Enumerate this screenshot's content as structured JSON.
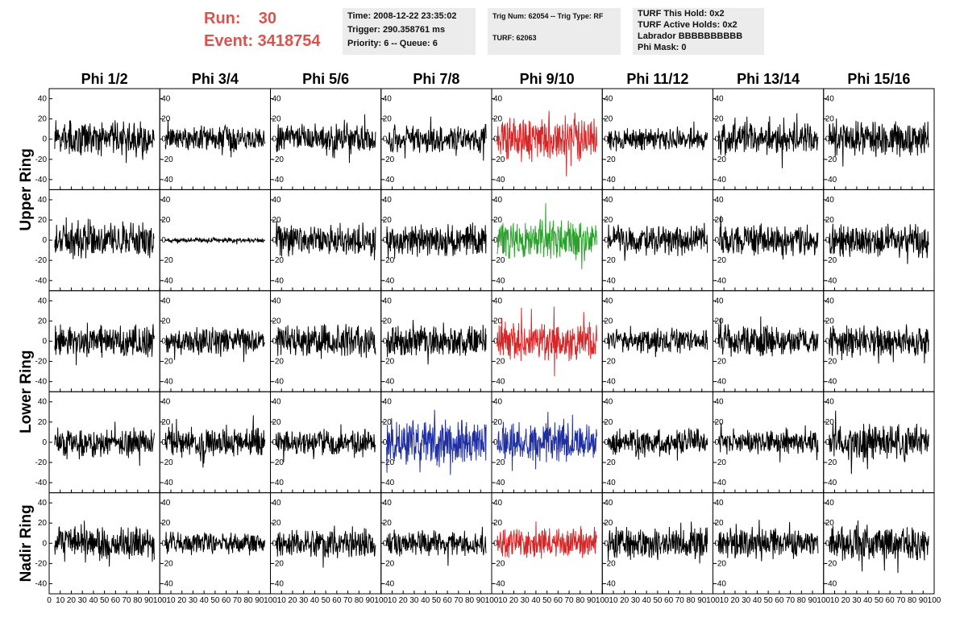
{
  "header": {
    "run_label": "Run:    30",
    "event_label": "Event: 3418754"
  },
  "info_time": {
    "time": "Time: 2008-12-22 23:35:02",
    "trigger": "Trigger: 290.358761 ms",
    "priority": "Priority: 6 -- Queue: 6"
  },
  "info_trig": {
    "trig": "Trig Num: 62054 -- Trig Type: RF",
    "turf": "TURF: 62063"
  },
  "info_turf": {
    "hold": "TURF This Hold: 0x2",
    "active": "TURF Active Holds: 0x2",
    "labrador": "Labrador BBBBBBBBBB",
    "phi_mask": "Phi Mask: 0"
  },
  "chart_data": {
    "type": "line",
    "columns": [
      "Phi 1/2",
      "Phi 3/4",
      "Phi 5/6",
      "Phi 7/8",
      "Phi 9/10",
      "Phi 11/12",
      "Phi 13/14",
      "Phi 15/16"
    ],
    "rows": [
      "Upper Ring",
      "Lower Ring",
      "Nadir Ring"
    ],
    "xlim": [
      0,
      100
    ],
    "ylim": [
      -50,
      50
    ],
    "x_ticks": [
      0,
      10,
      20,
      30,
      40,
      50,
      60,
      70,
      80,
      90,
      100
    ],
    "y_ticks": [
      -40,
      -20,
      0,
      20,
      40
    ],
    "x_tick_labels": [
      "0",
      "10",
      "20",
      "30",
      "40",
      "50",
      "60",
      "70",
      "80",
      "90",
      "100"
    ],
    "colors": {
      "default": "#000000",
      "red": "#d62728",
      "green": "#2ca02c",
      "blue": "#1f2fa0"
    },
    "panels": [
      {
        "row": 0,
        "col": 0,
        "color": "default",
        "amp": 14
      },
      {
        "row": 0,
        "col": 1,
        "color": "default",
        "amp": 10
      },
      {
        "row": 0,
        "col": 2,
        "color": "default",
        "amp": 12
      },
      {
        "row": 0,
        "col": 3,
        "color": "default",
        "amp": 11
      },
      {
        "row": 0,
        "col": 4,
        "color": "red",
        "amp": 18
      },
      {
        "row": 0,
        "col": 5,
        "color": "default",
        "amp": 9
      },
      {
        "row": 0,
        "col": 6,
        "color": "default",
        "amp": 13
      },
      {
        "row": 0,
        "col": 7,
        "color": "default",
        "amp": 14
      },
      {
        "row": 1,
        "col": 0,
        "color": "default",
        "amp": 14
      },
      {
        "row": 1,
        "col": 1,
        "color": "default",
        "amp": 2
      },
      {
        "row": 1,
        "col": 2,
        "color": "default",
        "amp": 12
      },
      {
        "row": 1,
        "col": 3,
        "color": "default",
        "amp": 13
      },
      {
        "row": 1,
        "col": 4,
        "color": "green",
        "amp": 17
      },
      {
        "row": 1,
        "col": 5,
        "color": "default",
        "amp": 12
      },
      {
        "row": 1,
        "col": 6,
        "color": "default",
        "amp": 12
      },
      {
        "row": 1,
        "col": 7,
        "color": "default",
        "amp": 14
      },
      {
        "row": 2,
        "col": 0,
        "color": "default",
        "amp": 13
      },
      {
        "row": 2,
        "col": 1,
        "color": "default",
        "amp": 11
      },
      {
        "row": 2,
        "col": 2,
        "color": "default",
        "amp": 13
      },
      {
        "row": 2,
        "col": 3,
        "color": "default",
        "amp": 13
      },
      {
        "row": 2,
        "col": 4,
        "color": "red",
        "amp": 16
      },
      {
        "row": 2,
        "col": 5,
        "color": "default",
        "amp": 10
      },
      {
        "row": 2,
        "col": 6,
        "color": "default",
        "amp": 12
      },
      {
        "row": 2,
        "col": 7,
        "color": "default",
        "amp": 13
      },
      {
        "row": 3,
        "col": 0,
        "color": "default",
        "amp": 11
      },
      {
        "row": 3,
        "col": 1,
        "color": "default",
        "amp": 12
      },
      {
        "row": 3,
        "col": 2,
        "color": "default",
        "amp": 10
      },
      {
        "row": 3,
        "col": 3,
        "color": "blue",
        "amp": 18
      },
      {
        "row": 3,
        "col": 4,
        "color": "blue",
        "amp": 15
      },
      {
        "row": 3,
        "col": 5,
        "color": "default",
        "amp": 11
      },
      {
        "row": 3,
        "col": 6,
        "color": "default",
        "amp": 10
      },
      {
        "row": 3,
        "col": 7,
        "color": "default",
        "amp": 15
      },
      {
        "row": 4,
        "col": 0,
        "color": "default",
        "amp": 14
      },
      {
        "row": 4,
        "col": 1,
        "color": "default",
        "amp": 9
      },
      {
        "row": 4,
        "col": 2,
        "color": "default",
        "amp": 11
      },
      {
        "row": 4,
        "col": 3,
        "color": "default",
        "amp": 10
      },
      {
        "row": 4,
        "col": 4,
        "color": "red",
        "amp": 12
      },
      {
        "row": 4,
        "col": 5,
        "color": "default",
        "amp": 13
      },
      {
        "row": 4,
        "col": 6,
        "color": "default",
        "amp": 12
      },
      {
        "row": 4,
        "col": 7,
        "color": "default",
        "amp": 14
      }
    ]
  }
}
